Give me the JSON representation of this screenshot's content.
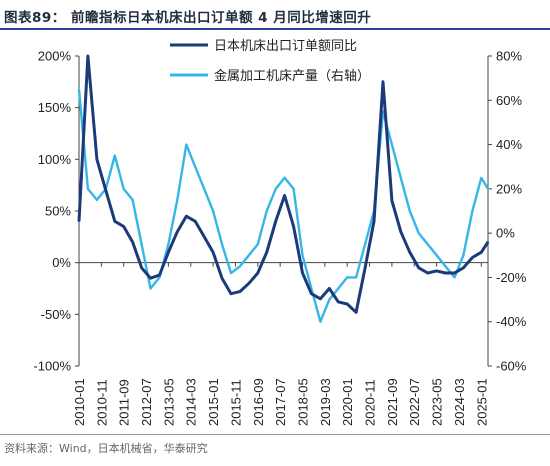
{
  "figure_title": "图表89：  前瞻指标日本机床出口订单额 4 月同比增速回升",
  "source": "资料来源：Wind，日本机械省，华泰研究",
  "colors": {
    "series1": "#1c3a7a",
    "series2": "#34b6e6",
    "title_rule": "#2b3f9a"
  },
  "chart_data": {
    "type": "line",
    "title": "",
    "legend_placement": "top-center",
    "x_tick_labels": [
      "2010-01",
      "2010-11",
      "2011-09",
      "2012-07",
      "2013-05",
      "2014-03",
      "2015-01",
      "2015-11",
      "2016-09",
      "2017-07",
      "2018-05",
      "2019-03",
      "2020-01",
      "2020-11",
      "2021-09",
      "2022-07",
      "2023-05",
      "2024-03",
      "2025-01"
    ],
    "y_left": {
      "ticks": [
        "-100%",
        "-50%",
        "0%",
        "50%",
        "100%",
        "150%",
        "200%"
      ],
      "range": [
        -100,
        200
      ],
      "unit": "%"
    },
    "y_right": {
      "ticks": [
        "-60%",
        "-40%",
        "-20%",
        "0%",
        "20%",
        "40%",
        "60%",
        "80%"
      ],
      "range": [
        -60,
        80
      ],
      "unit": "%"
    },
    "series": [
      {
        "name": "日本机床出口订单额同比",
        "axis": "left",
        "x": [
          "2010-01",
          "2010-05",
          "2010-09",
          "2011-01",
          "2011-05",
          "2011-09",
          "2012-01",
          "2012-05",
          "2012-09",
          "2013-01",
          "2013-05",
          "2013-09",
          "2014-01",
          "2014-05",
          "2014-09",
          "2015-01",
          "2015-05",
          "2015-09",
          "2016-01",
          "2016-05",
          "2016-09",
          "2017-01",
          "2017-05",
          "2017-09",
          "2018-01",
          "2018-05",
          "2018-09",
          "2019-01",
          "2019-05",
          "2019-09",
          "2020-01",
          "2020-05",
          "2020-09",
          "2021-01",
          "2021-05",
          "2021-09",
          "2022-01",
          "2022-05",
          "2022-09",
          "2023-01",
          "2023-05",
          "2023-09",
          "2024-01",
          "2024-05",
          "2024-09",
          "2025-01",
          "2025-04"
        ],
        "values": [
          40,
          200,
          100,
          70,
          40,
          35,
          20,
          -5,
          -15,
          -12,
          10,
          30,
          45,
          40,
          25,
          10,
          -15,
          -30,
          -28,
          -20,
          -10,
          10,
          40,
          65,
          35,
          -10,
          -30,
          -35,
          -25,
          -38,
          -40,
          -48,
          -5,
          40,
          175,
          60,
          30,
          10,
          -5,
          -10,
          -8,
          -10,
          -10,
          -5,
          5,
          10,
          20
        ]
      },
      {
        "name": "金属加工机床产量（右轴）",
        "axis": "right",
        "x": [
          "2010-01",
          "2010-05",
          "2010-09",
          "2011-01",
          "2011-05",
          "2011-09",
          "2012-01",
          "2012-05",
          "2012-09",
          "2013-01",
          "2013-05",
          "2013-09",
          "2014-01",
          "2014-05",
          "2014-09",
          "2015-01",
          "2015-05",
          "2015-09",
          "2016-01",
          "2016-05",
          "2016-09",
          "2017-01",
          "2017-05",
          "2017-09",
          "2018-01",
          "2018-05",
          "2018-09",
          "2019-01",
          "2019-05",
          "2019-09",
          "2020-01",
          "2020-05",
          "2020-09",
          "2021-01",
          "2021-05",
          "2021-09",
          "2022-01",
          "2022-05",
          "2022-09",
          "2023-01",
          "2023-05",
          "2023-09",
          "2024-01",
          "2024-05",
          "2024-09",
          "2025-01",
          "2025-04"
        ],
        "values": [
          65,
          20,
          15,
          20,
          35,
          20,
          15,
          -5,
          -25,
          -20,
          -5,
          15,
          40,
          30,
          20,
          10,
          -5,
          -18,
          -15,
          -10,
          -5,
          10,
          20,
          25,
          20,
          -10,
          -25,
          -40,
          -30,
          -25,
          -20,
          -20,
          -5,
          10,
          55,
          40,
          25,
          10,
          0,
          -5,
          -10,
          -15,
          -20,
          -10,
          10,
          25,
          20
        ]
      }
    ]
  }
}
